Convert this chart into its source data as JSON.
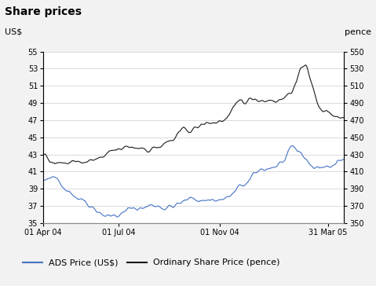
{
  "title": "Share prices",
  "ylabel_left": "US$",
  "ylabel_right": "pence",
  "ylim_left": [
    35,
    55
  ],
  "ylim_right": [
    350,
    550
  ],
  "yticks_left": [
    35,
    37,
    39,
    41,
    43,
    45,
    47,
    49,
    51,
    53,
    55
  ],
  "yticks_right": [
    350,
    370,
    390,
    410,
    430,
    450,
    470,
    490,
    510,
    530,
    550
  ],
  "xtick_labels": [
    "01 Apr 04",
    "01 Jul 04",
    "01 Nov 04",
    "31 Mar 05"
  ],
  "xtick_pos": [
    0,
    65,
    152,
    245
  ],
  "ads_color": "#4472c4",
  "ordinary_color": "#1a1a1a",
  "header_color": "#d4d4d4",
  "plot_bg": "#ffffff",
  "fig_bg": "#f2f2f2",
  "title_fontsize": 10,
  "legend_fontsize": 8,
  "axis_fontsize": 8,
  "tick_fontsize": 7,
  "n_points": 260,
  "seed": 42
}
